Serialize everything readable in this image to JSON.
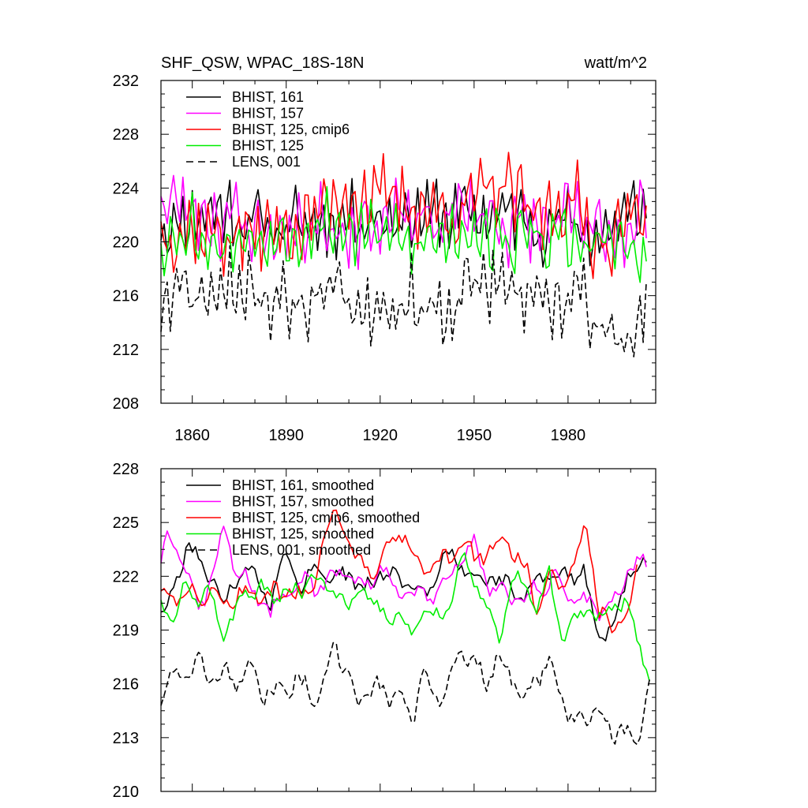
{
  "chart_data": [
    {
      "type": "line",
      "title": "SHF_QSW, WPAC_18S-18N",
      "units": "watt/m^2",
      "xlim": [
        1850,
        2008
      ],
      "ylim": [
        208,
        232
      ],
      "x_ticks": [
        1860,
        1890,
        1920,
        1950,
        1980
      ],
      "y_ticks": [
        208,
        212,
        216,
        220,
        224,
        228,
        232
      ],
      "legend_position": "top-left",
      "series": [
        {
          "name": "BHIST, 161",
          "color": "#000000",
          "dash": "solid",
          "noise": 2.4,
          "period": 3.0,
          "seed": 11,
          "x": [
            1850,
            1860,
            1870,
            1880,
            1890,
            1900,
            1910,
            1920,
            1930,
            1940,
            1950,
            1960,
            1970,
            1980,
            1990,
            2000,
            2005
          ],
          "y": [
            221,
            222,
            222.5,
            221.5,
            221,
            221.5,
            222,
            222,
            222,
            222,
            222,
            222,
            221.5,
            221.5,
            220.5,
            222,
            222.5
          ]
        },
        {
          "name": "BHIST, 157",
          "color": "#ff00ff",
          "dash": "solid",
          "noise": 2.6,
          "period": 3.4,
          "seed": 23,
          "x": [
            1850,
            1860,
            1870,
            1880,
            1890,
            1900,
            1910,
            1920,
            1930,
            1940,
            1950,
            1960,
            1970,
            1980,
            1990,
            2000,
            2005
          ],
          "y": [
            223,
            222.5,
            222,
            221,
            220.5,
            221.5,
            221.5,
            221.5,
            221.5,
            221.5,
            222.5,
            221.5,
            221,
            221.5,
            220.5,
            221.5,
            222.5
          ]
        },
        {
          "name": "BHIST, 125, cmip6",
          "color": "#ff0000",
          "dash": "solid",
          "noise": 2.6,
          "period": 3.1,
          "seed": 37,
          "x": [
            1850,
            1860,
            1870,
            1880,
            1890,
            1900,
            1910,
            1920,
            1930,
            1940,
            1950,
            1960,
            1970,
            1980,
            1990,
            2000,
            2005
          ],
          "y": [
            221,
            221,
            220.5,
            220.5,
            221,
            222,
            224,
            223,
            223,
            222,
            223,
            224,
            221.5,
            223.5,
            220,
            221.5,
            222.5
          ]
        },
        {
          "name": "BHIST, 125",
          "color": "#00ee00",
          "dash": "solid",
          "noise": 2.4,
          "period": 3.6,
          "seed": 53,
          "x": [
            1850,
            1860,
            1870,
            1880,
            1890,
            1900,
            1910,
            1920,
            1930,
            1940,
            1950,
            1960,
            1970,
            1980,
            1990,
            2000,
            2005
          ],
          "y": [
            220.5,
            221,
            220,
            220,
            221,
            221.5,
            221,
            220.5,
            219.5,
            220.5,
            221.5,
            219.5,
            221,
            219.5,
            220,
            219.5,
            217.5
          ]
        },
        {
          "name": "LENS, 001",
          "color": "#000000",
          "dash": "dashed",
          "noise": 2.8,
          "period": 2.9,
          "seed": 71,
          "x": [
            1850,
            1860,
            1870,
            1880,
            1890,
            1900,
            1910,
            1920,
            1930,
            1940,
            1950,
            1960,
            1970,
            1980,
            1990,
            2000,
            2005
          ],
          "y": [
            215.5,
            216,
            216,
            216.5,
            215.5,
            216,
            216,
            215,
            215.5,
            215.5,
            217,
            216.5,
            215.5,
            216,
            213.5,
            213,
            215.5
          ]
        }
      ]
    },
    {
      "type": "line",
      "title": "",
      "xlim": [
        1850,
        2008
      ],
      "ylim": [
        210,
        228
      ],
      "x_ticks": [
        1860,
        1890,
        1920,
        1950,
        1980
      ],
      "y_ticks": [
        210,
        213,
        216,
        219,
        222,
        225,
        228
      ],
      "legend_position": "top-left",
      "series": [
        {
          "name": "BHIST, 161, smoothed",
          "color": "#000000",
          "dash": "solid",
          "noise": 0.6,
          "period": 9,
          "seed": 111,
          "x": [
            1850,
            1852,
            1855,
            1858,
            1862,
            1866,
            1870,
            1875,
            1880,
            1885,
            1890,
            1895,
            1900,
            1905,
            1910,
            1915,
            1920,
            1925,
            1930,
            1935,
            1940,
            1945,
            1950,
            1955,
            1960,
            1965,
            1970,
            1975,
            1980,
            1985,
            1990,
            1995,
            2000,
            2005
          ],
          "y": [
            220.2,
            219.8,
            222,
            223.5,
            223,
            222,
            220.5,
            222.5,
            222,
            220.8,
            223,
            221.5,
            222.5,
            222,
            222.2,
            221,
            222.5,
            221.8,
            221.5,
            221.2,
            222.8,
            222.8,
            222,
            222.2,
            221.5,
            220.8,
            221.5,
            222.5,
            221.8,
            222.2,
            218.5,
            219.8,
            222.6,
            222.3
          ]
        },
        {
          "name": "BHIST, 157, smoothed",
          "color": "#ff00ff",
          "dash": "solid",
          "noise": 0.6,
          "period": 9,
          "seed": 123,
          "x": [
            1850,
            1852,
            1855,
            1858,
            1862,
            1866,
            1870,
            1875,
            1880,
            1885,
            1890,
            1895,
            1900,
            1905,
            1910,
            1915,
            1920,
            1925,
            1930,
            1935,
            1940,
            1945,
            1950,
            1955,
            1960,
            1965,
            1970,
            1975,
            1980,
            1985,
            1990,
            1995,
            2000,
            2005
          ],
          "y": [
            222.6,
            224.7,
            223.8,
            222.5,
            219.8,
            222,
            224.5,
            222,
            221.2,
            219.8,
            221.2,
            221.8,
            221.2,
            222.2,
            222,
            221.5,
            222.5,
            221.5,
            220.8,
            220.8,
            221.2,
            222.8,
            223.8,
            221.5,
            221.2,
            220.5,
            221.5,
            222,
            221,
            220.5,
            220.2,
            220.5,
            222.8,
            222.5
          ]
        },
        {
          "name": "BHIST, 125, cmip6, smoothed",
          "color": "#ff0000",
          "dash": "solid",
          "noise": 0.7,
          "period": 9,
          "seed": 137,
          "x": [
            1850,
            1855,
            1860,
            1865,
            1870,
            1875,
            1880,
            1885,
            1890,
            1895,
            1898,
            1902,
            1906,
            1910,
            1914,
            1918,
            1922,
            1926,
            1930,
            1934,
            1938,
            1942,
            1946,
            1950,
            1954,
            1958,
            1962,
            1966,
            1970,
            1974,
            1978,
            1982,
            1986,
            1990,
            1994,
            1998,
            2002
          ],
          "y": [
            221,
            221,
            221,
            221,
            221,
            221,
            221,
            221,
            221.2,
            220.8,
            222,
            223.5,
            225.5,
            223.5,
            222.5,
            222.5,
            223.5,
            224.5,
            223.2,
            222.5,
            222.8,
            222.8,
            223.8,
            223,
            223.5,
            223.5,
            223.5,
            222.5,
            220.5,
            222.2,
            221.5,
            222.5,
            224.5,
            220.5,
            219,
            220.2,
            222
          ]
        },
        {
          "name": "BHIST, 125, smoothed",
          "color": "#00ee00",
          "dash": "solid",
          "noise": 0.6,
          "period": 9,
          "seed": 153,
          "x": [
            1850,
            1854,
            1858,
            1862,
            1866,
            1870,
            1874,
            1878,
            1882,
            1886,
            1890,
            1894,
            1898,
            1902,
            1906,
            1910,
            1914,
            1918,
            1922,
            1926,
            1930,
            1934,
            1938,
            1942,
            1946,
            1950,
            1954,
            1958,
            1962,
            1966,
            1970,
            1974,
            1978,
            1982,
            1986,
            1990,
            1994,
            1998,
            2002,
            2006
          ],
          "y": [
            220.8,
            219.8,
            221.5,
            221,
            220.8,
            219,
            219.8,
            221,
            221.5,
            220.2,
            221.5,
            220.8,
            222,
            221.2,
            221.5,
            220.2,
            221.8,
            220.2,
            219.8,
            220.5,
            218.5,
            220.2,
            219.5,
            220.5,
            222.8,
            222,
            220.2,
            218.5,
            222.2,
            221.5,
            220.2,
            221.8,
            218.8,
            219.5,
            220.2,
            219.8,
            220.2,
            220.6,
            218.5,
            216.6
          ]
        },
        {
          "name": "LENS, 001, smoothed",
          "color": "#000000",
          "dash": "dashed",
          "noise": 0.7,
          "period": 8,
          "seed": 171,
          "x": [
            1850,
            1854,
            1858,
            1862,
            1866,
            1870,
            1874,
            1878,
            1882,
            1886,
            1890,
            1894,
            1898,
            1902,
            1906,
            1910,
            1914,
            1918,
            1922,
            1926,
            1930,
            1934,
            1938,
            1942,
            1946,
            1950,
            1954,
            1958,
            1962,
            1966,
            1970,
            1974,
            1978,
            1982,
            1986,
            1990,
            1994,
            1998,
            2002,
            2006
          ],
          "y": [
            215.3,
            216.3,
            216.8,
            217.2,
            216.2,
            216.5,
            216.3,
            216.5,
            215.8,
            215.5,
            215.8,
            216.2,
            215.5,
            216.2,
            218.5,
            216,
            215.2,
            215.8,
            215.5,
            215.2,
            214.5,
            216.2,
            215.2,
            215.8,
            217.8,
            216.8,
            216.5,
            217.5,
            216.5,
            214.8,
            216.5,
            217,
            215.5,
            213.5,
            214.2,
            214.5,
            213.5,
            213.2,
            212.8,
            216
          ]
        }
      ]
    }
  ]
}
